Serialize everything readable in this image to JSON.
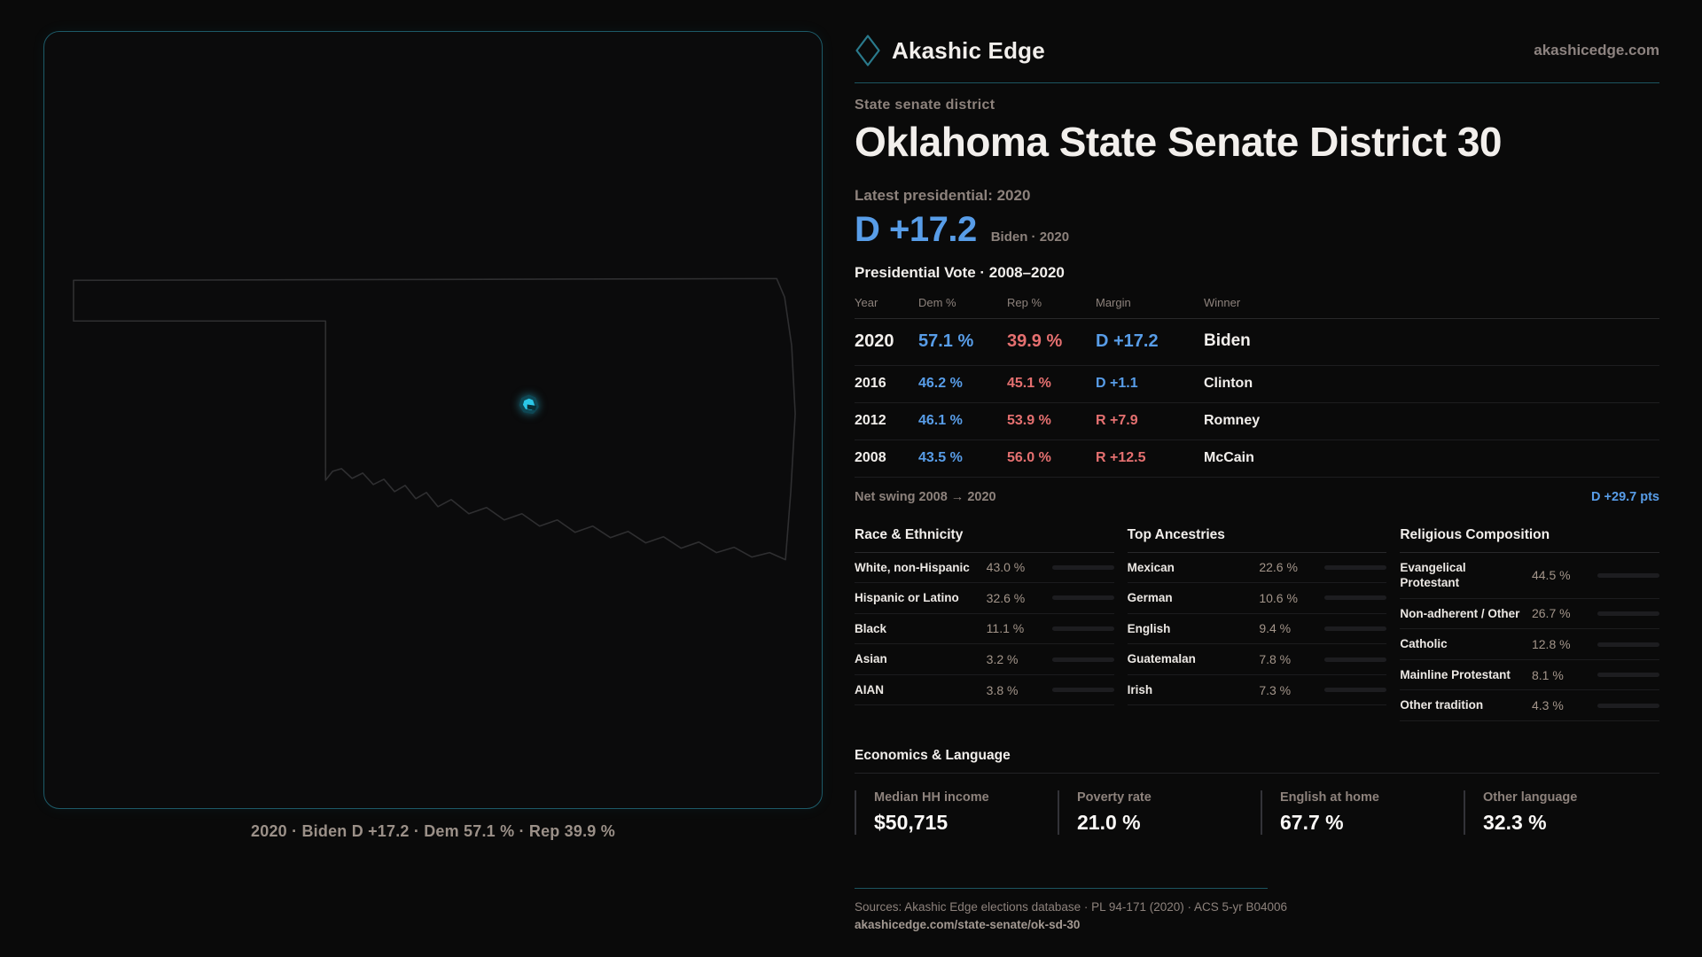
{
  "brand": {
    "name": "Akashic Edge",
    "site": "akashicedge.com"
  },
  "header": {
    "kicker": "State senate district",
    "title": "Oklahoma State Senate District 30"
  },
  "latest": {
    "label": "Latest presidential: 2020",
    "margin": "D +17.2",
    "sub": "Biden · 2020"
  },
  "map": {
    "caption": "2020 · Biden D +17.2 · Dem 57.1 % · Rep 39.9 %"
  },
  "vote_table": {
    "title": "Presidential Vote · 2008–2020",
    "columns": [
      "Year",
      "Dem %",
      "Rep %",
      "Margin",
      "Winner"
    ],
    "rows": [
      {
        "year": "2020",
        "dem": "57.1 %",
        "rep": "39.9 %",
        "margin": "D +17.2",
        "margin_color": "#589de8",
        "winner": "Biden"
      },
      {
        "year": "2016",
        "dem": "46.2 %",
        "rep": "45.1 %",
        "margin": "D +1.1",
        "margin_color": "#589de8",
        "winner": "Clinton"
      },
      {
        "year": "2012",
        "dem": "46.1 %",
        "rep": "53.9 %",
        "margin": "R +7.9",
        "margin_color": "#e57070",
        "winner": "Romney"
      },
      {
        "year": "2008",
        "dem": "43.5 %",
        "rep": "56.0 %",
        "margin": "R +12.5",
        "margin_color": "#e57070",
        "winner": "McCain"
      }
    ],
    "net_swing_label": "Net swing 2008 → 2020",
    "net_swing_value": "D +29.7 pts"
  },
  "demographics": [
    {
      "title": "Race & Ethnicity",
      "rows": [
        {
          "label": "White, non-Hispanic",
          "value": "43.0 %",
          "pct": 43.0,
          "color": "#97a7c0"
        },
        {
          "label": "Hispanic or Latino",
          "value": "32.6 %",
          "pct": 32.6,
          "color": "#dca32e"
        },
        {
          "label": "Black",
          "value": "11.1 %",
          "pct": 11.1,
          "color": "#8e82d8"
        },
        {
          "label": "Asian",
          "value": "3.2 %",
          "pct": 3.2,
          "color": "#25a06d"
        },
        {
          "label": "AIAN",
          "value": "3.8 %",
          "pct": 3.8,
          "color": "#d88a2e"
        }
      ]
    },
    {
      "title": "Top Ancestries",
      "rows": [
        {
          "label": "Mexican",
          "value": "22.6 %",
          "pct": 22.6,
          "color": "#dca32e"
        },
        {
          "label": "German",
          "value": "10.6 %",
          "pct": 10.6,
          "color": "#9db8d8"
        },
        {
          "label": "English",
          "value": "9.4 %",
          "pct": 9.4,
          "color": "#9db8d8"
        },
        {
          "label": "Guatemalan",
          "value": "7.8 %",
          "pct": 7.8,
          "color": "#dca32e"
        },
        {
          "label": "Irish",
          "value": "7.3 %",
          "pct": 7.3,
          "color": "#9db8d8"
        }
      ]
    },
    {
      "title": "Religious Composition",
      "rows": [
        {
          "label": "Evangelical Protestant",
          "value": "44.5 %",
          "pct": 44.5,
          "color": "#d96c6c"
        },
        {
          "label": "Non-adherent / Other",
          "value": "26.7 %",
          "pct": 26.7,
          "color": "#6f7787"
        },
        {
          "label": "Catholic",
          "value": "12.8 %",
          "pct": 12.8,
          "color": "#ddb02f"
        },
        {
          "label": "Mainline Protestant",
          "value": "8.1 %",
          "pct": 8.1,
          "color": "#4a90e2"
        },
        {
          "label": "Other tradition",
          "value": "4.3 %",
          "pct": 4.3,
          "color": "#87878f"
        }
      ]
    }
  ],
  "economics": {
    "title": "Economics & Language",
    "stats": [
      {
        "label": "Median HH income",
        "value": "$50,715"
      },
      {
        "label": "Poverty rate",
        "value": "21.0 %"
      },
      {
        "label": "English at home",
        "value": "67.7 %"
      },
      {
        "label": "Other language",
        "value": "32.3 %"
      }
    ]
  },
  "footer": {
    "sources": "Sources: Akashic Edge elections database · PL 94-171 (2020) · ACS 5-yr B04006",
    "permalink": "akashicedge.com/state-senate/ok-sd-30"
  },
  "colors": {
    "dem_blue": "#589de8",
    "rep_red": "#e57070",
    "accent_teal": "#1c5560",
    "district_cyan": "#2bc7e8"
  }
}
